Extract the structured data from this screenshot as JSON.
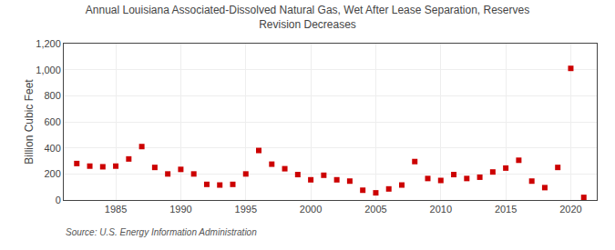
{
  "chart_data": {
    "type": "scatter",
    "title": "Annual Louisiana Associated-Dissolved Natural Gas, Wet After Lease Separation, Reserves\nRevision Decreases",
    "ylabel": "Billion Cubic Feet",
    "annotations": [
      "Source: U.S. Energy Information Administration"
    ],
    "x": [
      1982,
      1983,
      1984,
      1985,
      1986,
      1987,
      1988,
      1989,
      1990,
      1991,
      1992,
      1993,
      1994,
      1995,
      1996,
      1997,
      1998,
      1999,
      2000,
      2001,
      2002,
      2003,
      2004,
      2005,
      2006,
      2007,
      2008,
      2009,
      2010,
      2011,
      2012,
      2013,
      2014,
      2015,
      2016,
      2017,
      2018,
      2019,
      2020,
      2021
    ],
    "values": [
      280,
      260,
      255,
      260,
      315,
      410,
      250,
      200,
      235,
      200,
      120,
      115,
      120,
      200,
      380,
      275,
      240,
      195,
      155,
      190,
      155,
      145,
      75,
      55,
      85,
      115,
      295,
      165,
      150,
      195,
      165,
      175,
      215,
      245,
      305,
      145,
      95,
      250,
      1010,
      20
    ],
    "color": "#cc0000",
    "marker": "square",
    "xlim": [
      1981,
      2022
    ],
    "xticks": [
      1985,
      1990,
      1995,
      2000,
      2005,
      2010,
      2015,
      2020
    ],
    "ylim": [
      0,
      1200
    ],
    "yticks": [
      0,
      200,
      400,
      600,
      800,
      {
        "value": 1000,
        "label": "1,000"
      },
      {
        "value": 1200,
        "label": "1,200"
      }
    ],
    "grid": true
  }
}
